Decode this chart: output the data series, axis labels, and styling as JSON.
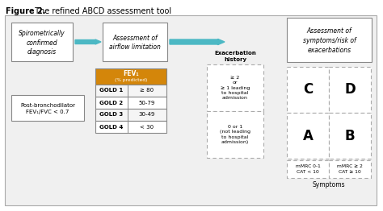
{
  "title_bold": "Figure 2.",
  "title_rest": " The refined ABCD assessment tool",
  "box1_text": "Spirometrically\nconfirmed\ndiagnosis",
  "box2_text": "Assessment of\nairflow limitation",
  "box3_text": "Assessment of\nsymptoms/risk of\nexacerbations",
  "box_left_text": "Post-bronchodilator\nFEV₁/FVC < 0.7",
  "gold_header1": "FEV₁",
  "gold_header2": "(% predicted)",
  "gold_rows": [
    [
      "GOLD 1",
      "≥ 80"
    ],
    [
      "GOLD 2",
      "50-79"
    ],
    [
      "GOLD 3",
      "30-49"
    ],
    [
      "GOLD 4",
      "< 30"
    ]
  ],
  "exacerbation_title": "Exacerbation\nhistory",
  "exacerbation_high": "≥ 2\nor\n≥ 1 leading\nto hospital\nadmission",
  "exacerbation_low": "0 or 1\n(not leading\nto hospital\nadmission)",
  "abcd_C": "C",
  "abcd_D": "D",
  "abcd_A": "A",
  "abcd_B": "B",
  "mmrc_left": "mMRC 0-1\nCAT < 10",
  "mmrc_right": "mMRC ≥ 2\nCAT ≥ 10",
  "symptoms_label": "Symptoms",
  "arrow_color": "#4cb8c4",
  "gold_header_bg": "#d4860a",
  "gold_header_color": "#ffffff",
  "box_border_color": "#888888",
  "dashed_border_color": "#aaaaaa",
  "bg_color": "#f2f2f2",
  "figure_bg": "#ffffff",
  "outer_bg": "#f0f0f0"
}
